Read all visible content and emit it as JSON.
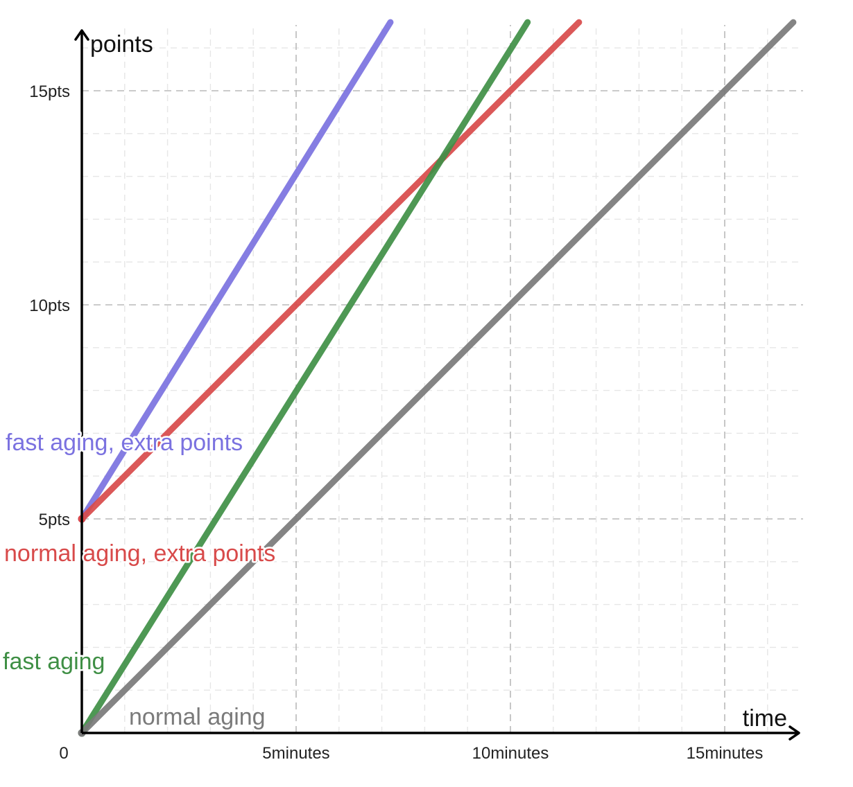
{
  "chart_data": {
    "type": "line",
    "xlabel": "time",
    "ylabel": "points",
    "xlim": [
      0,
      16.6
    ],
    "ylim": [
      0,
      16.6
    ],
    "x_ticks": [
      {
        "value": 0,
        "label": "0"
      },
      {
        "value": 5,
        "label": "5minutes"
      },
      {
        "value": 10,
        "label": "10minutes"
      },
      {
        "value": 15,
        "label": "15minutes"
      }
    ],
    "y_ticks": [
      {
        "value": 5,
        "label": "5pts"
      },
      {
        "value": 10,
        "label": "10pts"
      },
      {
        "value": 15,
        "label": "15pts"
      }
    ],
    "major_grid_step": 5,
    "minor_grid_step": 1,
    "grid": true,
    "series": [
      {
        "key": "fast-aging-extra-points",
        "name": "fast aging, extra points",
        "color": "#7b72e0",
        "x": [
          0,
          7.2
        ],
        "y": [
          5,
          16.6
        ]
      },
      {
        "key": "normal-aging-extra-points",
        "name": "normal aging, extra points",
        "color": "#d84a4a",
        "x": [
          0,
          11.6
        ],
        "y": [
          5,
          16.6
        ]
      },
      {
        "key": "fast-aging",
        "name": "fast aging",
        "color": "#3f8f45",
        "x": [
          0,
          10.4
        ],
        "y": [
          0,
          16.6
        ]
      },
      {
        "key": "normal-aging",
        "name": "normal aging",
        "color": "#7a7a7a",
        "x": [
          0,
          16.6
        ],
        "y": [
          0,
          16.6
        ]
      }
    ]
  }
}
